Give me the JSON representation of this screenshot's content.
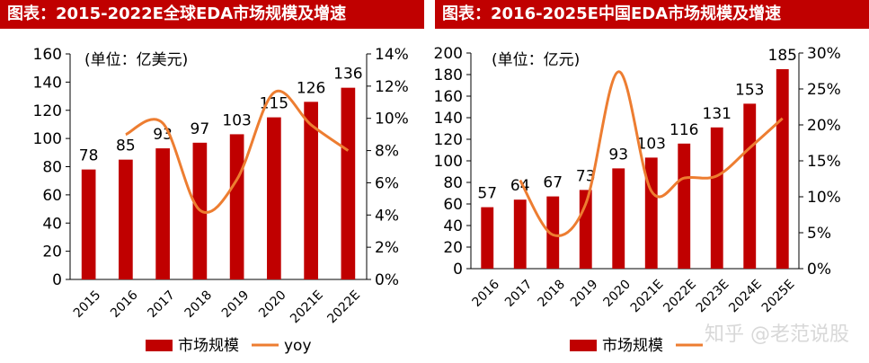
{
  "charts": {
    "left": {
      "title": "图表：2015-2022E全球EDA市场规模及增速"
    },
    "right": {
      "title": "图表：2016-2025E中国EDA市场规模及增速"
    }
  },
  "watermark": "知乎 @老范说股",
  "colors": {
    "bar": "#c00000",
    "line": "#ed7d31",
    "title_bg": "#c00000"
  },
  "chart_data": [
    {
      "type": "bar",
      "title": "图表：2015-2022E全球EDA市场规模及增速",
      "unit_label": "(单位：亿美元)",
      "categories": [
        "2015",
        "2016",
        "2017",
        "2018",
        "2019",
        "2020",
        "2021E",
        "2022E"
      ],
      "series": [
        {
          "name": "市场规模",
          "type": "bar",
          "axis": "left",
          "values": [
            78,
            85,
            93,
            97,
            103,
            115,
            126,
            136
          ]
        },
        {
          "name": "yoy",
          "type": "line",
          "axis": "right",
          "values": [
            null,
            9.0,
            9.7,
            4.3,
            6.2,
            11.6,
            9.6,
            8.0
          ]
        }
      ],
      "ylim": [
        0,
        160
      ],
      "yticks": [
        0,
        20,
        40,
        60,
        80,
        100,
        120,
        140,
        160
      ],
      "y2lim": [
        0,
        14
      ],
      "y2ticks": [
        "0%",
        "2%",
        "4%",
        "6%",
        "8%",
        "10%",
        "12%",
        "14%"
      ],
      "legend": "bottom"
    },
    {
      "type": "bar",
      "title": "图表：2016-2025E中国EDA市场规模及增速",
      "unit_label": "(单位：亿元)",
      "categories": [
        "2016",
        "2017",
        "2018",
        "2019",
        "2020",
        "2021E",
        "2022E",
        "2023E",
        "2024E",
        "2025E"
      ],
      "series": [
        {
          "name": "市场规模",
          "type": "bar",
          "axis": "left",
          "values": [
            57,
            64,
            67,
            73,
            93,
            103,
            116,
            131,
            153,
            185
          ]
        },
        {
          "name": "",
          "type": "line",
          "axis": "right",
          "values": [
            null,
            12.3,
            4.7,
            9.0,
            27.4,
            10.8,
            12.6,
            12.9,
            16.8,
            20.9
          ]
        }
      ],
      "ylim": [
        0,
        200
      ],
      "yticks": [
        0,
        20,
        40,
        60,
        80,
        100,
        120,
        140,
        160,
        180,
        200
      ],
      "y2lim": [
        0,
        30
      ],
      "y2ticks": [
        "0%",
        "5%",
        "10%",
        "15%",
        "20%",
        "25%",
        "30%"
      ],
      "legend": "bottom"
    }
  ]
}
